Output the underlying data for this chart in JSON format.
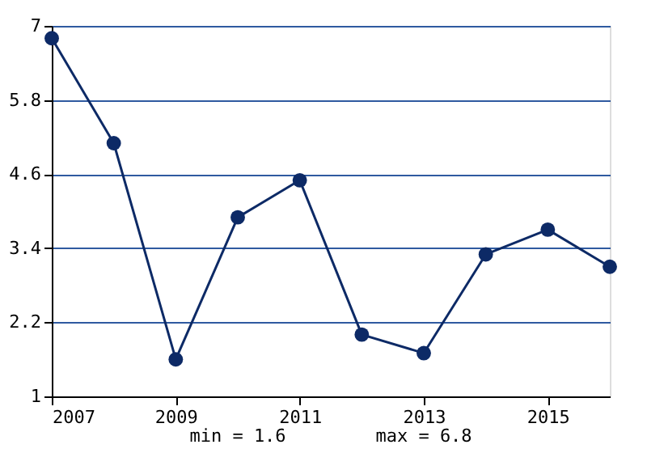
{
  "chart_data": {
    "type": "line",
    "x": [
      2007,
      2008,
      2009,
      2010,
      2011,
      2012,
      2013,
      2014,
      2015,
      2016
    ],
    "series": [
      {
        "color": "#0d2a66",
        "values": [
          6.8,
          5.1,
          1.6,
          3.9,
          4.5,
          2.0,
          1.7,
          3.3,
          3.7,
          3.1
        ]
      }
    ],
    "xlim": [
      2007,
      2016
    ],
    "xticks": [
      2007,
      2009,
      2011,
      2013,
      2015
    ],
    "ylim": [
      1,
      7
    ],
    "yticks": [
      1,
      2.2,
      3.4,
      4.6,
      5.8,
      7
    ],
    "grid": "y",
    "marker": "circle",
    "line_style": "solid",
    "annotations": [
      "min = 1.6",
      "max = 6.8"
    ]
  }
}
